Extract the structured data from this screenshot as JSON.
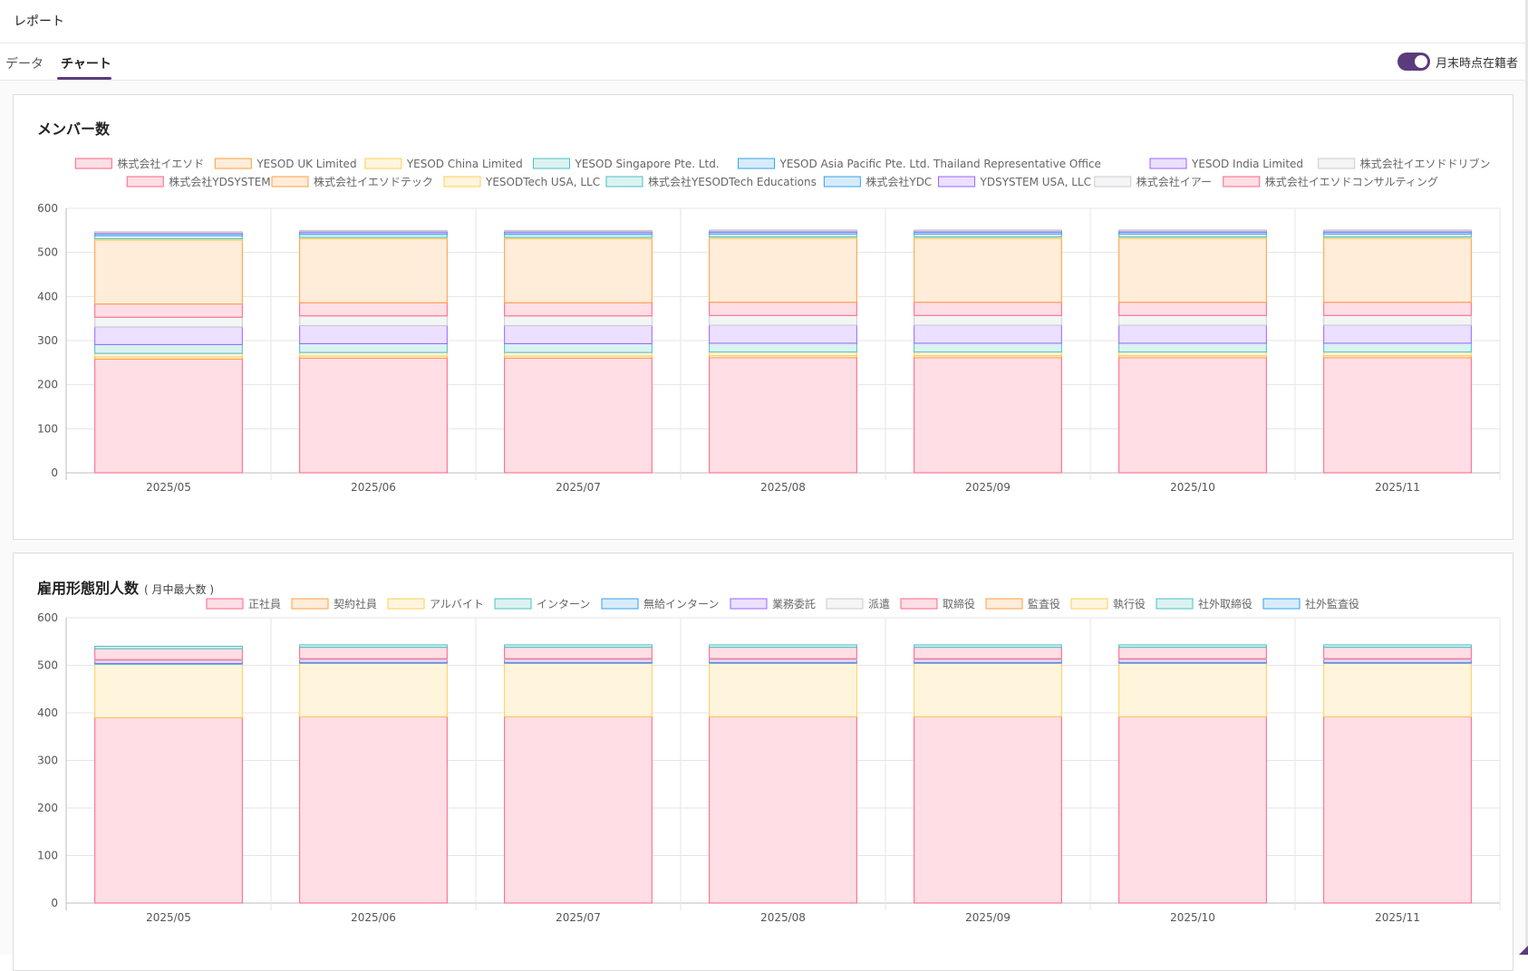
{
  "header": {
    "title": "レポート"
  },
  "tabs": [
    {
      "label": "データ",
      "active": false
    },
    {
      "label": "チャート",
      "active": true
    }
  ],
  "toggle": {
    "label": "月末時点在籍者",
    "on": true
  },
  "palette": [
    {
      "stroke": "#ff6384",
      "fill": "#ffdee5"
    },
    {
      "stroke": "#ff9f40",
      "fill": "#ffecd9"
    },
    {
      "stroke": "#ffcd56",
      "fill": "#fff5dd"
    },
    {
      "stroke": "#4bc0c0",
      "fill": "#dbf2f2"
    },
    {
      "stroke": "#36a2eb",
      "fill": "#d7ecfb"
    },
    {
      "stroke": "#9966ff",
      "fill": "#ebe0ff"
    },
    {
      "stroke": "#c9cbcf",
      "fill": "#f4f5f5"
    }
  ],
  "chart_data": [
    {
      "type": "bar",
      "stacked": true,
      "title": "メンバー数",
      "subtitle": "",
      "ylim": [
        0,
        600
      ],
      "yticks": [
        0,
        100,
        200,
        300,
        400,
        500,
        600
      ],
      "grid": true,
      "legend": "top",
      "categories": [
        "2025/05",
        "2025/06",
        "2025/07",
        "2025/08",
        "2025/09",
        "2025/10",
        "2025/11"
      ],
      "series": [
        {
          "name": "株式会社イエソド",
          "values": [
            258,
            260,
            260,
            261,
            261,
            261,
            261
          ]
        },
        {
          "name": "YESOD UK Limited",
          "values": [
            5,
            5,
            5,
            5,
            5,
            5,
            5
          ]
        },
        {
          "name": "YESOD China Limited",
          "values": [
            8,
            8,
            8,
            8,
            8,
            8,
            8
          ]
        },
        {
          "name": "YESOD Singapore Pte. Ltd.",
          "values": [
            20,
            20,
            20,
            20,
            20,
            20,
            20
          ]
        },
        {
          "name": "YESOD Asia Pacific Pte. Ltd. Thailand Representative Office",
          "values": [
            0,
            0,
            0,
            0,
            0,
            0,
            0
          ]
        },
        {
          "name": "YESOD India Limited",
          "values": [
            40,
            41,
            41,
            41,
            41,
            41,
            41
          ]
        },
        {
          "name": "株式会社イエソドドリブン",
          "values": [
            22,
            22,
            22,
            22,
            22,
            22,
            22
          ]
        },
        {
          "name": "株式会社YDSYSTEM",
          "values": [
            30,
            30,
            30,
            30,
            30,
            30,
            30
          ]
        },
        {
          "name": "株式会社イエソドテック",
          "values": [
            145,
            145,
            145,
            145,
            145,
            145,
            145
          ]
        },
        {
          "name": "YESODTech USA, LLC",
          "values": [
            3,
            3,
            3,
            3,
            3,
            3,
            3
          ]
        },
        {
          "name": "株式会社YESODTech Educations",
          "values": [
            7,
            7,
            7,
            7,
            7,
            7,
            7
          ]
        },
        {
          "name": "株式会社YDC",
          "values": [
            4,
            4,
            4,
            4,
            4,
            4,
            4
          ]
        },
        {
          "name": "YDSYSTEM USA, LLC",
          "values": [
            3,
            3,
            3,
            3,
            3,
            3,
            3
          ]
        },
        {
          "name": "株式会社イアー",
          "values": [
            2,
            2,
            2,
            2,
            2,
            2,
            2
          ]
        },
        {
          "name": "株式会社イエソドコンサルティング",
          "values": [
            0,
            0,
            0,
            0,
            0,
            0,
            0
          ]
        }
      ]
    },
    {
      "type": "bar",
      "stacked": true,
      "title": "雇用形態別人数",
      "subtitle": "( 月中最大数 )",
      "ylim": [
        0,
        600
      ],
      "yticks": [
        0,
        100,
        200,
        300,
        400,
        500,
        600
      ],
      "grid": true,
      "legend": "top",
      "categories": [
        "2025/05",
        "2025/06",
        "2025/07",
        "2025/08",
        "2025/09",
        "2025/10",
        "2025/11"
      ],
      "series": [
        {
          "name": "正社員",
          "values": [
            390,
            392,
            392,
            392,
            392,
            392,
            392
          ]
        },
        {
          "name": "契約社員",
          "values": [
            0,
            0,
            0,
            0,
            0,
            0,
            0
          ]
        },
        {
          "name": "アルバイト",
          "values": [
            112,
            112,
            112,
            112,
            112,
            112,
            112
          ]
        },
        {
          "name": "インターン",
          "values": [
            2,
            2,
            2,
            2,
            2,
            2,
            2
          ]
        },
        {
          "name": "無給インターン",
          "values": [
            0,
            0,
            0,
            0,
            0,
            0,
            0
          ]
        },
        {
          "name": "業務委託",
          "values": [
            6,
            6,
            6,
            6,
            6,
            6,
            6
          ]
        },
        {
          "name": "派遣",
          "values": [
            2,
            2,
            2,
            2,
            2,
            2,
            2
          ]
        },
        {
          "name": "取締役",
          "values": [
            23,
            24,
            24,
            24,
            24,
            24,
            24
          ]
        },
        {
          "name": "監査役",
          "values": [
            0,
            0,
            0,
            0,
            0,
            0,
            0
          ]
        },
        {
          "name": "執行役",
          "values": [
            0,
            0,
            0,
            0,
            0,
            0,
            0
          ]
        },
        {
          "name": "社外取締役",
          "values": [
            5,
            5,
            5,
            5,
            5,
            5,
            5
          ]
        },
        {
          "name": "社外監査役",
          "values": [
            0,
            0,
            0,
            0,
            0,
            0,
            0
          ]
        }
      ]
    }
  ]
}
